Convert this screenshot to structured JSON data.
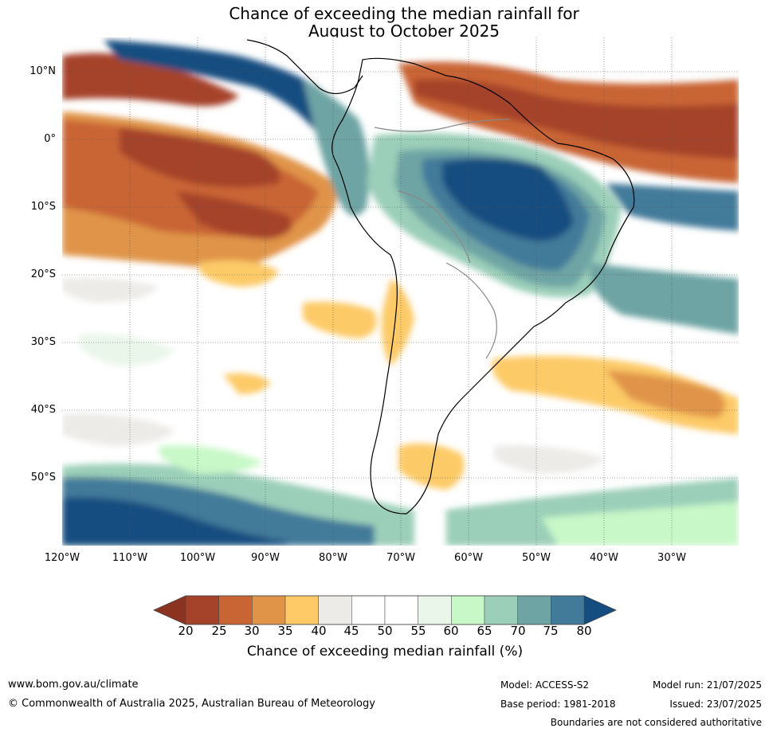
{
  "title_line1": "Chance of exceeding the median rainfall for",
  "title_line2": "August to October 2025",
  "map": {
    "lat_labels": [
      "10°N",
      "0°",
      "10°S",
      "20°S",
      "30°S",
      "40°S",
      "50°S"
    ],
    "lon_labels": [
      "120°W",
      "110°W",
      "100°W",
      "90°W",
      "80°W",
      "70°W",
      "60°W",
      "50°W",
      "40°W",
      "30°W"
    ]
  },
  "colorbar": {
    "ticks": [
      "20",
      "25",
      "30",
      "35",
      "40",
      "45",
      "50",
      "55",
      "60",
      "65",
      "70",
      "75",
      "80"
    ],
    "colors": [
      "#a5432a",
      "#c96535",
      "#e09448",
      "#fdca67",
      "#edebe8",
      "#ffffff",
      "#ffffff",
      "#eaf6ea",
      "#c8f8c8",
      "#9bcfb9",
      "#6ea4a4",
      "#427a9a"
    ],
    "low_color": "#8b3220",
    "high_color": "#144e80",
    "label": "Chance of exceeding median rainfall (%)"
  },
  "footer": {
    "website": "www.bom.gov.au/climate",
    "copyright": "© Commonwealth of Australia 2025, Australian Bureau of Meteorology",
    "model": "Model: ACCESS-S2",
    "base_period": "Base period: 1981-2018",
    "model_run": "Model run: 21/07/2025",
    "issued": "Issued: 23/07/2025",
    "boundaries": "Boundaries are not considered authoritative"
  }
}
